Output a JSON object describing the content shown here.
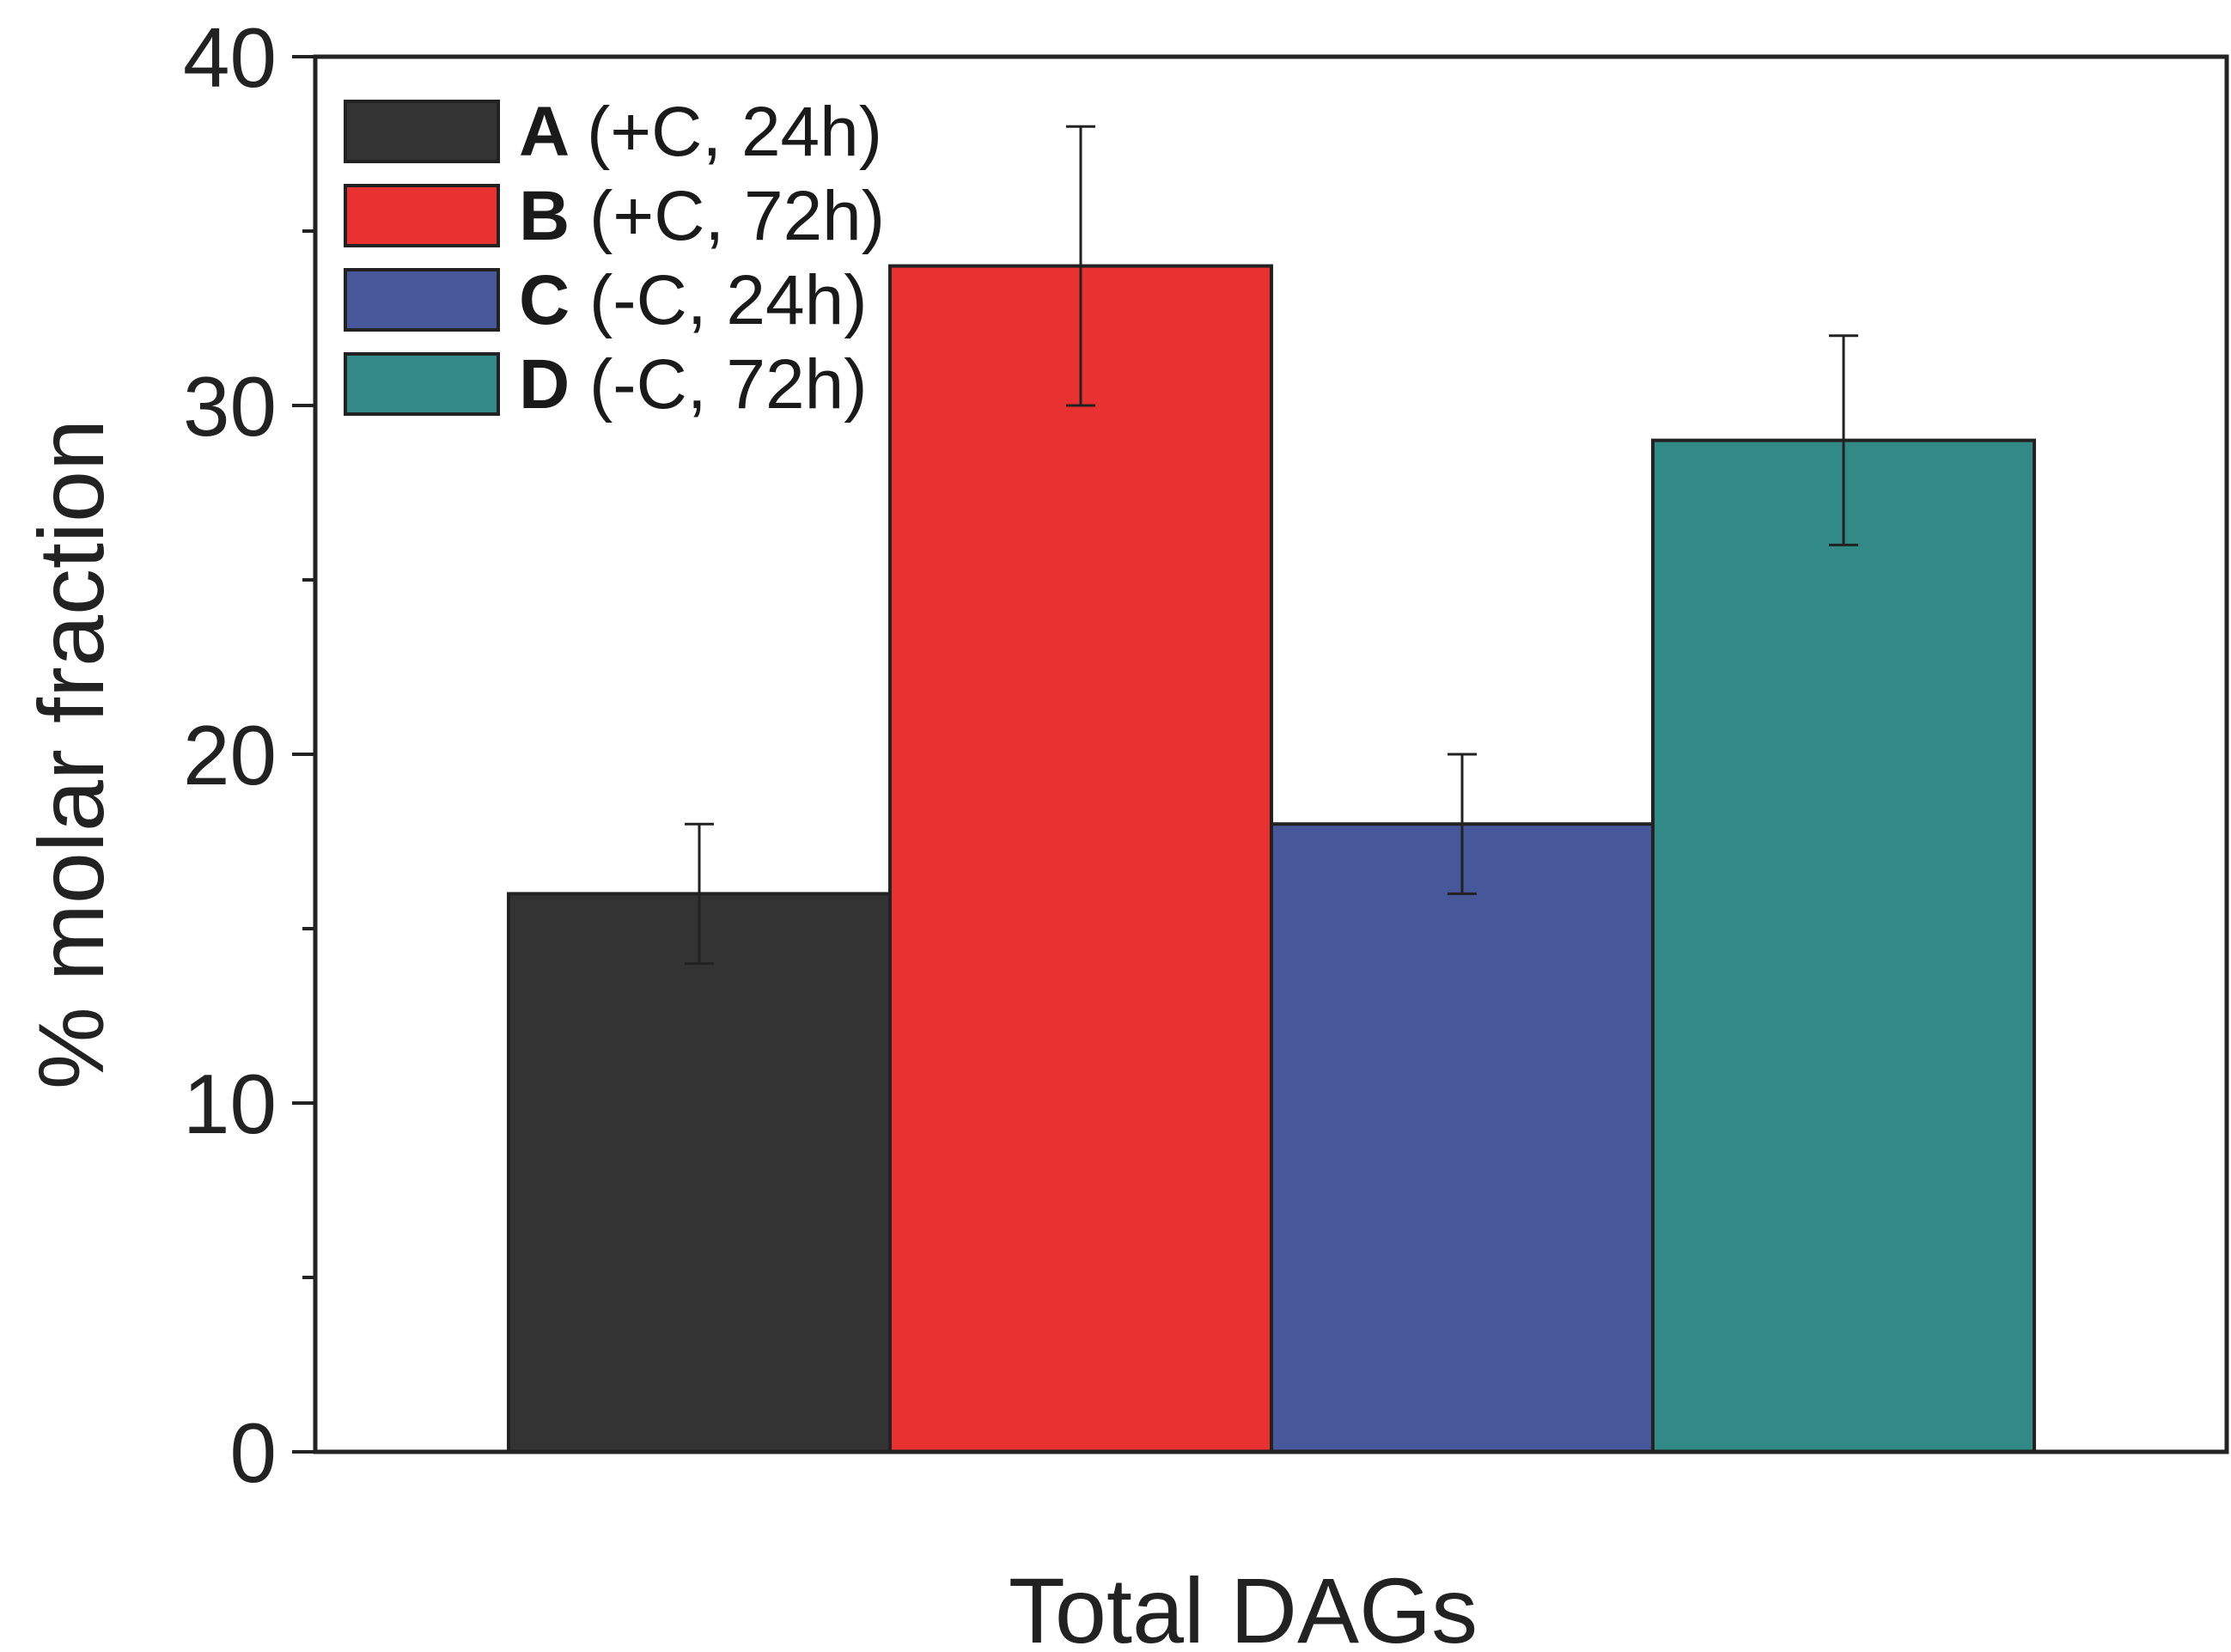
{
  "chart_data": {
    "type": "bar",
    "title": "",
    "xlabel": "Total DAGs",
    "ylabel": "% molar fraction",
    "ylim": [
      0,
      40
    ],
    "yticks": [
      0,
      10,
      20,
      30,
      40
    ],
    "yminor_ticks": [
      5,
      15,
      25,
      35
    ],
    "categories": [
      "Total DAGs"
    ],
    "legend_position": "top-left",
    "series": [
      {
        "key": "A",
        "label": "(+C, 24h)",
        "value": 16,
        "error": 2,
        "color": "#333333"
      },
      {
        "key": "B",
        "label": "(+C, 72h)",
        "value": 34,
        "error": 4,
        "color": "#e83232"
      },
      {
        "key": "C",
        "label": "(-C, 24h)",
        "value": 18,
        "error": 2,
        "color": "#46579a"
      },
      {
        "key": "D",
        "label": "(-C, 72h)",
        "value": 29,
        "error": 3,
        "color": "#328a86"
      }
    ]
  }
}
